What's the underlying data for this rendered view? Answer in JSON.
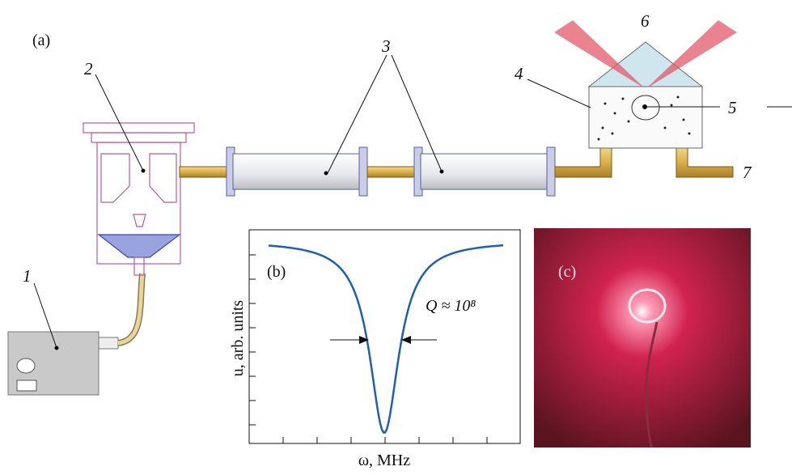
{
  "panel_labels": {
    "a": "(a)",
    "b": "(b)",
    "c": "(c)"
  },
  "component_labels": [
    "1",
    "2",
    "3",
    "4",
    "5",
    "6",
    "7"
  ],
  "inset_b": {
    "y_label": "u, arb. units",
    "x_label": "ω, MHz",
    "annotation": "Q ≈ 10⁸"
  }
}
